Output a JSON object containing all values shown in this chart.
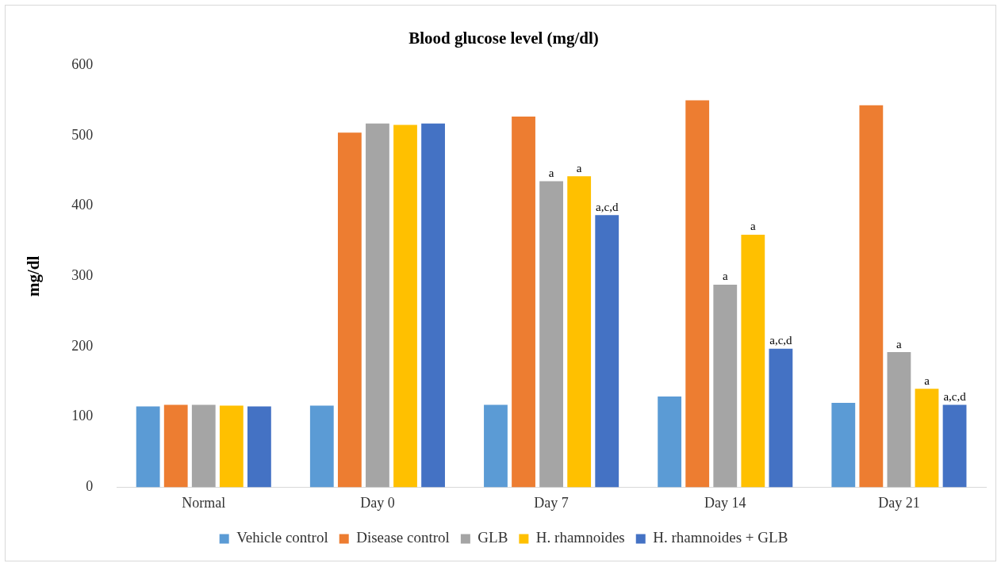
{
  "chart_data": {
    "type": "bar",
    "title": "Blood glucose level (mg/dl)",
    "ylabel": "mg/dl",
    "categories": [
      "Normal",
      "Day 0",
      "Day 7",
      "Day 14",
      "Day 21"
    ],
    "series": [
      {
        "name": "Vehicle control",
        "color": "#5b9bd5",
        "values": [
          115,
          116,
          117,
          129,
          120
        ]
      },
      {
        "name": "Disease control",
        "color": "#ed7d31",
        "values": [
          117,
          504,
          527,
          550,
          543
        ]
      },
      {
        "name": "GLB",
        "color": "#a5a5a5",
        "values": [
          117,
          517,
          435,
          288,
          192
        ],
        "value_labels": [
          null,
          null,
          "a",
          "a",
          "a"
        ]
      },
      {
        "name": "H. rhamnoides",
        "color": "#ffc000",
        "values": [
          116,
          515,
          442,
          359,
          140
        ],
        "value_labels": [
          null,
          null,
          "a",
          "a",
          "a"
        ]
      },
      {
        "name": "H. rhamnoides + GLB",
        "color": "#4472c4",
        "values": [
          115,
          517,
          387,
          197,
          117
        ],
        "value_labels": [
          null,
          null,
          "a,c,d",
          "a,c,d",
          "a,c,d"
        ]
      }
    ],
    "ylim": [
      0,
      600
    ],
    "yticks": [
      0,
      100,
      200,
      300,
      400,
      500,
      600
    ],
    "grid": false,
    "legend": "bottom"
  }
}
